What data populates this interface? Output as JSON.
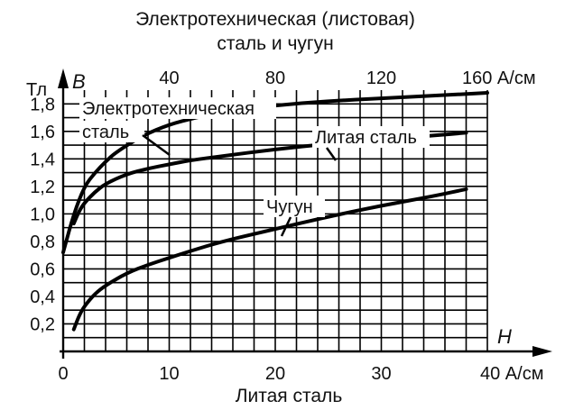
{
  "chart_data": {
    "type": "line",
    "title": "Электротехническая (листовая)",
    "title_line2": "сталь и чугун",
    "xlabel_bottom": "Литая сталь",
    "ylabel": "Тл",
    "y_symbol": "B",
    "x_symbol": "H",
    "grid": true,
    "ylim": [
      0,
      2.0
    ],
    "x_bottom": {
      "lim": [
        0,
        40
      ],
      "unit": "А/см",
      "ticks": [
        "0",
        "10",
        "20",
        "30",
        "40"
      ]
    },
    "x_top": {
      "lim": [
        0,
        160
      ],
      "unit": "А/см",
      "ticks": [
        "40",
        "80",
        "120",
        "160"
      ]
    },
    "y_ticks": [
      "0,2",
      "0,4",
      "0,6",
      "0,8",
      "1,0",
      "1,2",
      "1,4",
      "1,6",
      "1,8"
    ],
    "series": [
      {
        "name": "Электротехническая",
        "name_line2": "сталь",
        "x_axis": "top",
        "x": [
          0,
          4,
          8,
          12,
          16,
          20,
          30,
          40,
          50,
          60,
          80,
          100,
          120,
          140,
          160
        ],
        "y": [
          0.72,
          1.0,
          1.2,
          1.3,
          1.38,
          1.45,
          1.57,
          1.65,
          1.7,
          1.74,
          1.79,
          1.82,
          1.84,
          1.86,
          1.88
        ]
      },
      {
        "name": "Литая сталь",
        "x_axis": "bottom",
        "x": [
          1,
          1.5,
          2,
          3,
          4,
          6,
          8,
          10,
          12,
          15,
          20,
          25,
          30,
          35,
          38
        ],
        "y": [
          0.93,
          1.02,
          1.08,
          1.16,
          1.22,
          1.29,
          1.33,
          1.36,
          1.39,
          1.42,
          1.47,
          1.51,
          1.54,
          1.57,
          1.59
        ]
      },
      {
        "name": "Чугун",
        "x_axis": "bottom",
        "x": [
          1,
          1.5,
          2,
          3,
          4,
          6,
          8,
          10,
          12,
          15,
          20,
          25,
          30,
          35,
          38
        ],
        "y": [
          0.16,
          0.26,
          0.33,
          0.42,
          0.48,
          0.57,
          0.63,
          0.68,
          0.73,
          0.8,
          0.89,
          0.98,
          1.06,
          1.13,
          1.18
        ]
      }
    ]
  }
}
